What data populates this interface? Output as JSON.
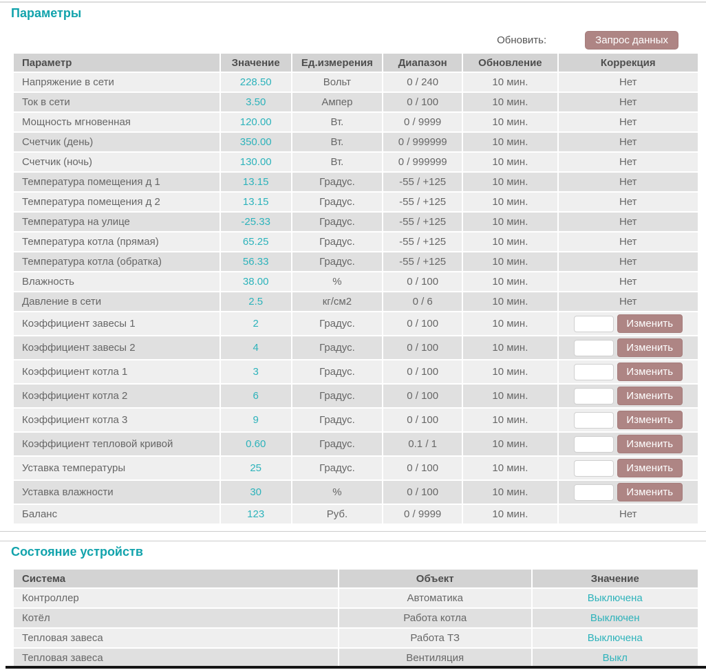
{
  "theme": {
    "accent_teal": "#12a3ac",
    "value_teal": "#2db3bb",
    "button_mauve": "#ae8584",
    "header_bg": "#d3d3d3",
    "row_odd_bg": "#efefef",
    "row_even_bg": "#e0e0e0"
  },
  "parameters_section": {
    "title": "Параметры",
    "refresh_label": "Обновить:",
    "request_button_label": "Запрос данных",
    "table": {
      "headers": [
        "Параметр",
        "Значение",
        "Ед.измерения",
        "Диапазон",
        "Обновление",
        "Коррекция"
      ],
      "edit_button_label": "Изменить",
      "no_correction_label": "Нет",
      "correction_input_value": "",
      "rows": [
        {
          "name": "Напряжение в сети",
          "value": "228.50",
          "unit": "Вольт",
          "range": "0 / 240",
          "update": "10 мин.",
          "correction": "none"
        },
        {
          "name": "Ток в сети",
          "value": "3.50",
          "unit": "Ампер",
          "range": "0 / 100",
          "update": "10 мин.",
          "correction": "none"
        },
        {
          "name": "Мощность мгновенная",
          "value": "120.00",
          "unit": "Вт.",
          "range": "0 / 9999",
          "update": "10 мин.",
          "correction": "none"
        },
        {
          "name": "Счетчик (день)",
          "value": "350.00",
          "unit": "Вт.",
          "range": "0 / 999999",
          "update": "10 мин.",
          "correction": "none"
        },
        {
          "name": "Счетчик (ночь)",
          "value": "130.00",
          "unit": "Вт.",
          "range": "0 / 999999",
          "update": "10 мин.",
          "correction": "none"
        },
        {
          "name": "Температура помещения д 1",
          "value": "13.15",
          "unit": "Градус.",
          "range": "-55 / +125",
          "update": "10 мин.",
          "correction": "none"
        },
        {
          "name": "Температура помещения д 2",
          "value": "13.15",
          "unit": "Градус.",
          "range": "-55 / +125",
          "update": "10 мин.",
          "correction": "none"
        },
        {
          "name": "Температура на улице",
          "value": "-25.33",
          "unit": "Градус.",
          "range": "-55 / +125",
          "update": "10 мин.",
          "correction": "none"
        },
        {
          "name": "Температура котла (прямая)",
          "value": "65.25",
          "unit": "Градус.",
          "range": "-55 / +125",
          "update": "10 мин.",
          "correction": "none"
        },
        {
          "name": "Температура котла (обратка)",
          "value": "56.33",
          "unit": "Градус.",
          "range": "-55 / +125",
          "update": "10 мин.",
          "correction": "none"
        },
        {
          "name": "Влажность",
          "value": "38.00",
          "unit": "%",
          "range": "0 / 100",
          "update": "10 мин.",
          "correction": "none"
        },
        {
          "name": "Давление в сети",
          "value": "2.5",
          "unit": "кг/см2",
          "range": "0 / 6",
          "update": "10 мин.",
          "correction": "none"
        },
        {
          "name": "Коэффициент завесы 1",
          "value": "2",
          "unit": "Градус.",
          "range": "0 / 100",
          "update": "10 мин.",
          "correction": "edit"
        },
        {
          "name": "Коэффициент завесы 2",
          "value": "4",
          "unit": "Градус.",
          "range": "0 / 100",
          "update": "10 мин.",
          "correction": "edit"
        },
        {
          "name": "Коэффициент котла 1",
          "value": "3",
          "unit": "Градус.",
          "range": "0 / 100",
          "update": "10 мин.",
          "correction": "edit"
        },
        {
          "name": "Коэффициент котла 2",
          "value": "6",
          "unit": "Градус.",
          "range": "0 / 100",
          "update": "10 мин.",
          "correction": "edit"
        },
        {
          "name": "Коэффициент котла 3",
          "value": "9",
          "unit": "Градус.",
          "range": "0 / 100",
          "update": "10 мин.",
          "correction": "edit"
        },
        {
          "name": "Коэффициент тепловой кривой",
          "value": "0.60",
          "unit": "Градус.",
          "range": "0.1 / 1",
          "update": "10 мин.",
          "correction": "edit"
        },
        {
          "name": "Уставка температуры",
          "value": "25",
          "unit": "Градус.",
          "range": "0 / 100",
          "update": "10 мин.",
          "correction": "edit"
        },
        {
          "name": "Уставка влажности",
          "value": "30",
          "unit": "%",
          "range": "0 / 100",
          "update": "10 мин.",
          "correction": "edit"
        },
        {
          "name": "Баланс",
          "value": "123",
          "unit": "Руб.",
          "range": "0 / 9999",
          "update": "10 мин.",
          "correction": "none"
        }
      ]
    }
  },
  "devices_section": {
    "title": "Состояние устройств",
    "table": {
      "headers": [
        "Система",
        "Объект",
        "Значение"
      ],
      "rows": [
        {
          "system": "Контроллер",
          "object": "Автоматика",
          "value": "Выключена"
        },
        {
          "system": "Котёл",
          "object": "Работа котла",
          "value": "Выключен"
        },
        {
          "system": "Тепловая завеса",
          "object": "Работа ТЗ",
          "value": "Выключена"
        },
        {
          "system": "Тепловая завеса",
          "object": "Вентиляция",
          "value": "Выкл"
        }
      ]
    }
  }
}
